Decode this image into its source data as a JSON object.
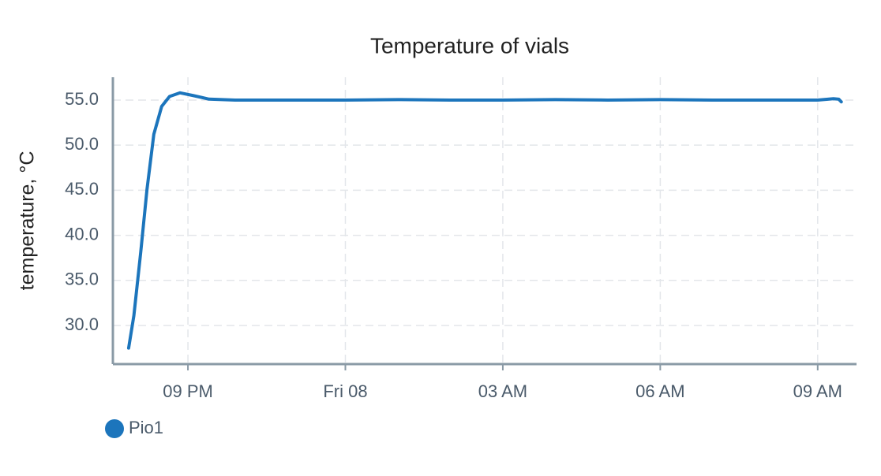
{
  "chart_data": {
    "type": "line",
    "title": "Temperature of vials",
    "y_label": "temperature, °C",
    "x": [
      19.87,
      19.97,
      20.1,
      20.22,
      20.35,
      20.5,
      20.65,
      20.85,
      21.1,
      21.4,
      21.9,
      22,
      23,
      24,
      25,
      26,
      27,
      28,
      29,
      30,
      31,
      32,
      33,
      33.3,
      33.4,
      33.45
    ],
    "series": [
      {
        "name": "Pio1",
        "color": "#1c75bc",
        "values": [
          27.5,
          31.1,
          38.1,
          45.1,
          51.2,
          54.3,
          55.4,
          55.8,
          55.5,
          55.1,
          55.0,
          55.0,
          55.0,
          55.0,
          55.05,
          55.0,
          55.0,
          55.05,
          55.0,
          55.05,
          55.0,
          55.0,
          55.0,
          55.15,
          55.1,
          54.8
        ]
      }
    ],
    "xlim": [
      19.57,
      33.74
    ],
    "xticks": [
      {
        "value": 21,
        "label": "09 PM"
      },
      {
        "value": 24,
        "label": "Fri 08"
      },
      {
        "value": 27,
        "label": "03 AM"
      },
      {
        "value": 30,
        "label": "06 AM"
      },
      {
        "value": 33,
        "label": "09 AM"
      }
    ],
    "ylim": [
      25.72,
      57.53
    ],
    "yticks": [
      {
        "value": 30,
        "label": "30.0"
      },
      {
        "value": 35,
        "label": "35.0"
      },
      {
        "value": 40,
        "label": "40.0"
      },
      {
        "value": 45,
        "label": "45.0"
      },
      {
        "value": 50,
        "label": "50.0"
      },
      {
        "value": 55,
        "label": "55.0"
      }
    ],
    "grid": true,
    "legend": "bottom-left"
  }
}
